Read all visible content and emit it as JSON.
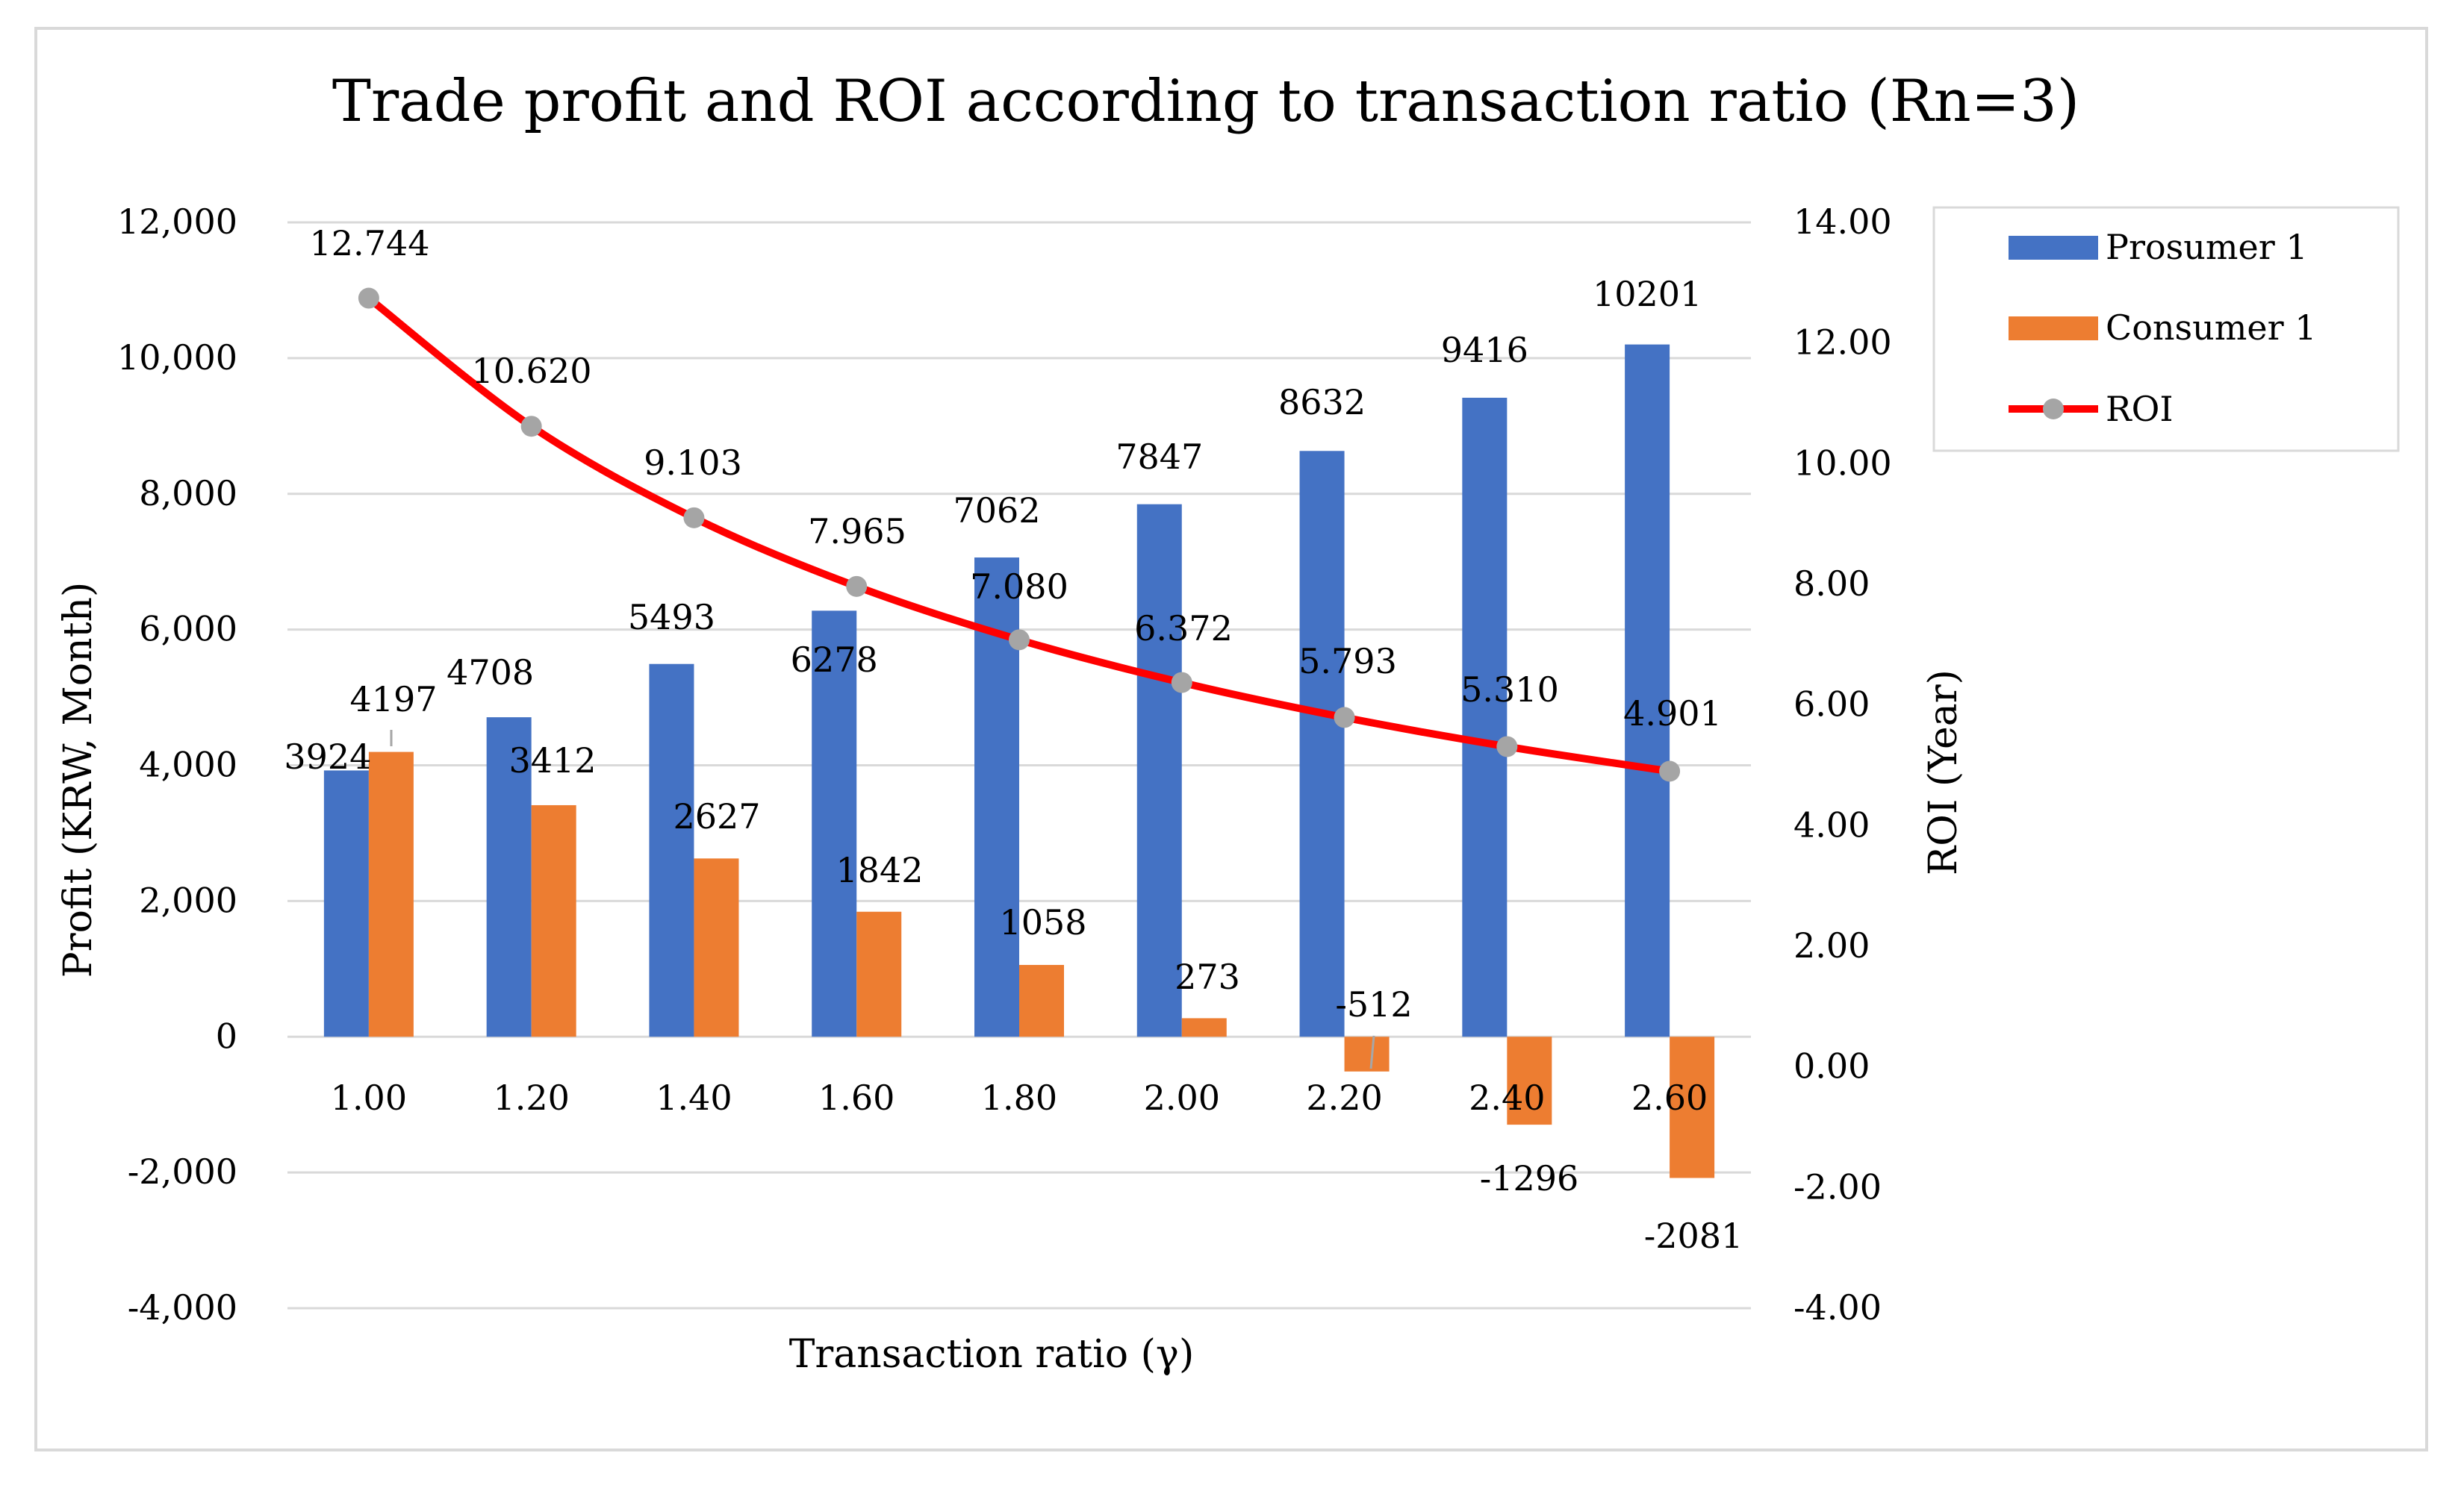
{
  "chart_data": {
    "type": "bar",
    "title": "Trade profit and ROI according to transaction ratio (Rn=3)",
    "xlabel": "Transaction ratio (γ)",
    "ylabel": "Profit (KRW, Month)",
    "y2label": "ROI (Year)",
    "categories": [
      "1.00",
      "1.20",
      "1.40",
      "1.60",
      "1.80",
      "2.00",
      "2.20",
      "2.40",
      "2.60"
    ],
    "ylim": [
      -4000,
      12000
    ],
    "y2lim": [
      -4,
      14
    ],
    "y_ticks": [
      "12,000",
      "10,000",
      "8,000",
      "6,000",
      "4,000",
      "2,000",
      "0",
      "-2,000",
      "-4,000"
    ],
    "y2_ticks": [
      "14.00",
      "12.00",
      "10.00",
      "8.00",
      "6.00",
      "4.00",
      "2.00",
      "0.00",
      "-2.00",
      "-4.00"
    ],
    "legend_position": "top-right",
    "series": [
      {
        "name": "Prosumer 1",
        "kind": "bar",
        "color": "#4472C4",
        "values": [
          3924,
          4708,
          5493,
          6278,
          7062,
          7847,
          8632,
          9416,
          10201
        ],
        "labels": [
          "3924",
          "4708",
          "5493",
          "6278",
          "7062",
          "7847",
          "8632",
          "9416",
          "10201"
        ]
      },
      {
        "name": "Consumer 1",
        "kind": "bar",
        "color": "#ED7D31",
        "values": [
          4197,
          3412,
          2627,
          1842,
          1058,
          273,
          -512,
          -1296,
          -2081
        ],
        "labels": [
          "4197",
          "3412",
          "2627",
          "1842",
          "1058",
          "273",
          "-512",
          "-1296",
          "-2081"
        ]
      },
      {
        "name": "ROI",
        "kind": "line",
        "axis": "right",
        "color": "#FF0000",
        "marker_color": "#A5A5A5",
        "values": [
          12.744,
          10.62,
          9.103,
          7.965,
          7.08,
          6.372,
          5.793,
          5.31,
          4.901
        ],
        "labels": [
          "12.744",
          "10.620",
          "9.103",
          "7.965",
          "7.080",
          "6.372",
          "5.793",
          "5.310",
          "4.901"
        ]
      }
    ]
  }
}
